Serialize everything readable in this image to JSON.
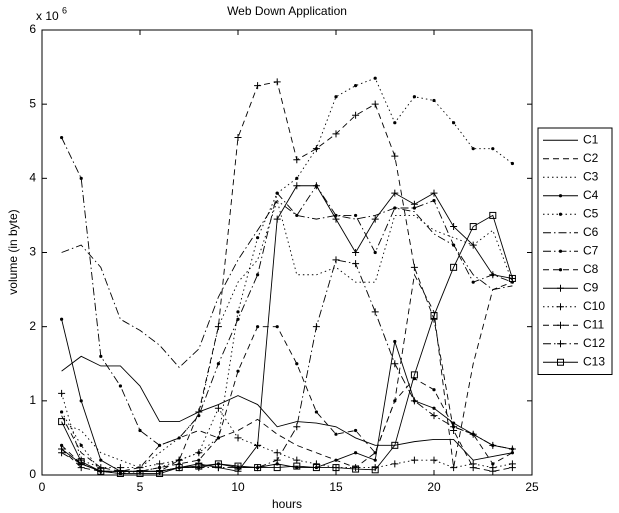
{
  "chart_data": {
    "type": "line",
    "title": "Web Down Application",
    "x_label": "hours",
    "y_label": "volume (in byte)",
    "y_multiplier": {
      "base": "x 10",
      "exponent": "6"
    },
    "x": [
      1,
      2,
      3,
      4,
      5,
      6,
      7,
      8,
      9,
      10,
      11,
      12,
      13,
      14,
      15,
      16,
      17,
      18,
      19,
      20,
      21,
      22,
      23,
      24
    ],
    "xlim": [
      0,
      25
    ],
    "xticks": [
      0,
      5,
      10,
      15,
      20,
      25
    ],
    "ylim": [
      0,
      6
    ],
    "yticks": [
      0,
      1,
      2,
      3,
      4,
      5,
      6
    ],
    "grid": false,
    "box": true,
    "legend_position": "right",
    "series": [
      {
        "name": "C1",
        "color": "#000000",
        "linestyle": "solid",
        "marker": "none",
        "values": [
          1.4,
          1.6,
          1.47,
          1.47,
          1.2,
          0.72,
          0.72,
          0.85,
          0.95,
          1.07,
          0.95,
          0.65,
          0.72,
          0.7,
          0.65,
          0.5,
          0.4,
          0.4,
          0.45,
          0.48,
          0.48,
          0.2,
          0.25,
          0.3
        ]
      },
      {
        "name": "C2",
        "color": "#000000",
        "linestyle": "dashed",
        "marker": "none",
        "values": [
          0.8,
          0.3,
          0.1,
          0.05,
          0.1,
          0.4,
          0.5,
          0.6,
          0.5,
          0.6,
          0.75,
          0.55,
          0.4,
          0.3,
          0.2,
          0.1,
          0.3,
          1.0,
          2.7,
          2.2,
          0.1,
          1.5,
          2.5,
          2.6
        ]
      },
      {
        "name": "C3",
        "color": "#000000",
        "linestyle": "dotted",
        "marker": "none",
        "values": [
          0.7,
          0.6,
          0.3,
          0.2,
          0.1,
          0.3,
          0.5,
          0.8,
          2.0,
          2.6,
          2.9,
          3.7,
          2.7,
          2.7,
          2.8,
          2.6,
          2.6,
          3.5,
          3.5,
          3.3,
          3.2,
          3.1,
          3.3,
          2.6
        ]
      },
      {
        "name": "C4",
        "color": "#000000",
        "linestyle": "solid",
        "marker": "dot",
        "values": [
          2.1,
          1.0,
          0.2,
          0.05,
          0.05,
          0.05,
          0.1,
          0.1,
          0.15,
          0.1,
          0.1,
          0.15,
          0.1,
          0.1,
          0.2,
          0.3,
          0.2,
          1.8,
          1.0,
          0.9,
          0.7,
          0.55,
          0.4,
          0.35
        ]
      },
      {
        "name": "C5",
        "color": "#000000",
        "linestyle": "dotted",
        "marker": "dot",
        "values": [
          0.85,
          0.4,
          0.05,
          0.02,
          0.05,
          0.1,
          0.2,
          0.3,
          0.5,
          2.2,
          3.2,
          3.8,
          4.0,
          4.4,
          5.1,
          5.25,
          5.35,
          4.75,
          5.1,
          5.05,
          4.75,
          4.4,
          4.4,
          4.2
        ]
      },
      {
        "name": "C6",
        "color": "#000000",
        "linestyle": "dashdot",
        "marker": "none",
        "values": [
          3.0,
          3.1,
          2.8,
          2.1,
          1.95,
          1.75,
          1.45,
          1.7,
          2.4,
          2.9,
          3.3,
          3.7,
          3.5,
          3.45,
          3.5,
          3.45,
          3.5,
          3.6,
          3.55,
          3.25,
          3.1,
          2.7,
          2.5,
          2.55
        ]
      },
      {
        "name": "C7",
        "color": "#000000",
        "linestyle": "dashdot",
        "marker": "dot",
        "values": [
          4.55,
          4.0,
          1.6,
          1.2,
          0.6,
          0.4,
          0.5,
          0.8,
          1.5,
          2.1,
          2.7,
          3.8,
          3.5,
          3.9,
          3.5,
          3.5,
          3.0,
          3.6,
          3.6,
          3.7,
          3.1,
          2.6,
          2.7,
          2.6
        ]
      },
      {
        "name": "C8",
        "color": "#000000",
        "linestyle": "dashed",
        "marker": "dot",
        "values": [
          0.4,
          0.15,
          0.05,
          0.05,
          0.05,
          0.1,
          0.15,
          0.2,
          0.5,
          1.4,
          2.0,
          2.0,
          1.5,
          0.85,
          0.55,
          0.6,
          0.3,
          1.0,
          1.3,
          1.15,
          0.65,
          0.55,
          0.15,
          0.3
        ]
      },
      {
        "name": "C9",
        "color": "#000000",
        "linestyle": "solid",
        "marker": "plus",
        "values": [
          0.35,
          0.15,
          0.05,
          0.05,
          0.05,
          0.05,
          0.1,
          0.15,
          0.1,
          0.05,
          0.4,
          3.45,
          3.9,
          3.9,
          3.45,
          3.0,
          3.45,
          3.8,
          3.65,
          3.8,
          3.35,
          3.1,
          2.7,
          2.65
        ]
      },
      {
        "name": "C10",
        "color": "#000000",
        "linestyle": "dotted",
        "marker": "plus",
        "values": [
          1.1,
          0.2,
          0.1,
          0.1,
          0.1,
          0.15,
          0.2,
          0.3,
          0.9,
          0.5,
          0.4,
          0.3,
          0.2,
          0.15,
          0.1,
          0.1,
          0.1,
          0.15,
          0.2,
          0.2,
          0.1,
          0.15,
          0.1,
          0.15
        ]
      },
      {
        "name": "C11",
        "color": "#000000",
        "linestyle": "dashed",
        "marker": "plus",
        "values": [
          0.35,
          0.1,
          0.05,
          0.05,
          0.05,
          0.05,
          0.2,
          0.85,
          2.0,
          4.55,
          5.25,
          5.3,
          4.25,
          4.4,
          4.6,
          4.85,
          5.0,
          4.3,
          2.8,
          2.1,
          0.6,
          0.1,
          0.05,
          0.1
        ]
      },
      {
        "name": "C12",
        "color": "#000000",
        "linestyle": "dashdot",
        "marker": "plus",
        "values": [
          0.3,
          0.15,
          0.05,
          0.05,
          0.05,
          0.05,
          0.1,
          0.1,
          0.1,
          0.1,
          0.1,
          0.2,
          0.65,
          2.0,
          2.9,
          2.85,
          2.2,
          1.5,
          1.0,
          0.8,
          0.65,
          0.55,
          0.4,
          0.35
        ]
      },
      {
        "name": "C13",
        "color": "#000000",
        "linestyle": "solid",
        "marker": "square",
        "values": [
          0.72,
          0.18,
          0.05,
          0.02,
          0.02,
          0.02,
          0.1,
          0.12,
          0.15,
          0.12,
          0.1,
          0.1,
          0.12,
          0.1,
          0.1,
          0.08,
          0.07,
          0.4,
          1.35,
          2.15,
          2.8,
          3.35,
          3.5,
          2.65
        ]
      }
    ]
  }
}
